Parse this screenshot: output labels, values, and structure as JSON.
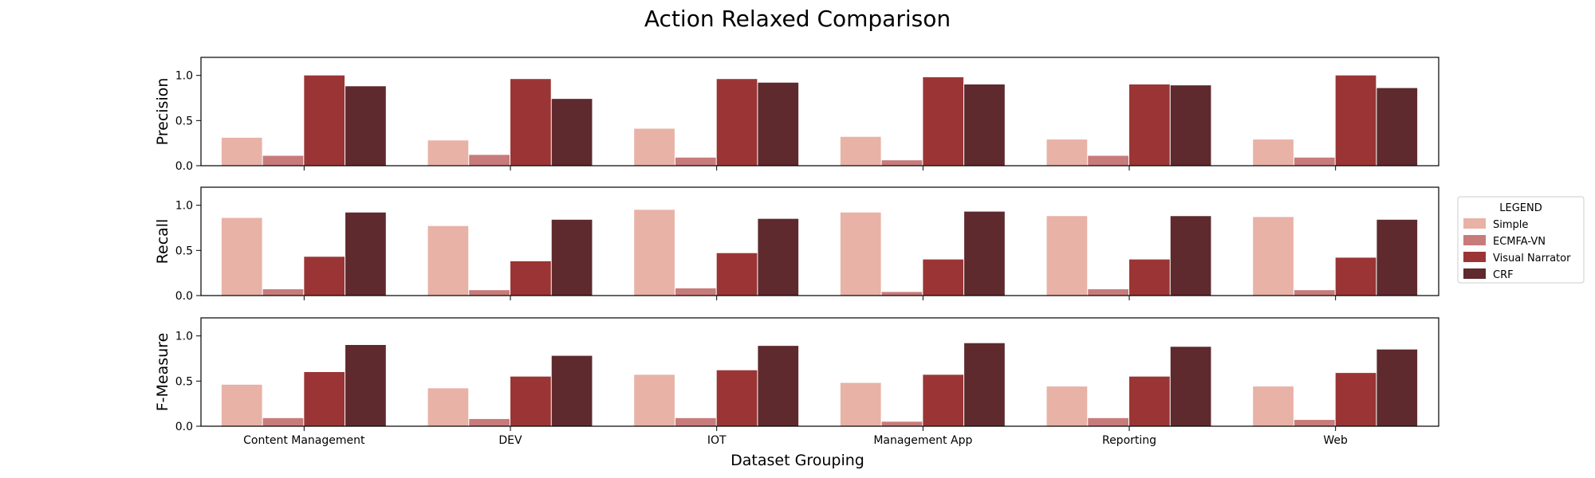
{
  "chart_data": {
    "type": "bar",
    "title": "Action Relaxed Comparison",
    "xlabel": "Dataset Grouping",
    "categories": [
      "Content Management",
      "DEV",
      "IOT",
      "Management App",
      "Reporting",
      "Web"
    ],
    "ylim": [
      0,
      1.2
    ],
    "yticks": [
      "0.0",
      "0.5",
      "1.0"
    ],
    "legend": {
      "title": "LEGEND",
      "placement": "right"
    },
    "series_names": [
      "Simple",
      "ECMFA-VN",
      "Visual Narrator",
      "CRF"
    ],
    "colors": [
      "#e8b2a6",
      "#c87b7b",
      "#9b3535",
      "#5e2a2d"
    ],
    "panels": [
      {
        "ylabel": "Precision",
        "series": [
          {
            "name": "Simple",
            "values": [
              0.31,
              0.28,
              0.41,
              0.32,
              0.29,
              0.29
            ]
          },
          {
            "name": "ECMFA-VN",
            "values": [
              0.11,
              0.12,
              0.09,
              0.06,
              0.11,
              0.09
            ]
          },
          {
            "name": "Visual Narrator",
            "values": [
              1.0,
              0.96,
              0.96,
              0.98,
              0.9,
              1.0
            ]
          },
          {
            "name": "CRF",
            "values": [
              0.88,
              0.74,
              0.92,
              0.9,
              0.89,
              0.86
            ]
          }
        ]
      },
      {
        "ylabel": "Recall",
        "series": [
          {
            "name": "Simple",
            "values": [
              0.86,
              0.77,
              0.95,
              0.92,
              0.88,
              0.87
            ]
          },
          {
            "name": "ECMFA-VN",
            "values": [
              0.07,
              0.06,
              0.08,
              0.04,
              0.07,
              0.06
            ]
          },
          {
            "name": "Visual Narrator",
            "values": [
              0.43,
              0.38,
              0.47,
              0.4,
              0.4,
              0.42
            ]
          },
          {
            "name": "CRF",
            "values": [
              0.92,
              0.84,
              0.85,
              0.93,
              0.88,
              0.84
            ]
          }
        ]
      },
      {
        "ylabel": "F-Measure",
        "series": [
          {
            "name": "Simple",
            "values": [
              0.46,
              0.42,
              0.57,
              0.48,
              0.44,
              0.44
            ]
          },
          {
            "name": "ECMFA-VN",
            "values": [
              0.09,
              0.08,
              0.09,
              0.05,
              0.09,
              0.07
            ]
          },
          {
            "name": "Visual Narrator",
            "values": [
              0.6,
              0.55,
              0.62,
              0.57,
              0.55,
              0.59
            ]
          },
          {
            "name": "CRF",
            "values": [
              0.9,
              0.78,
              0.89,
              0.92,
              0.88,
              0.85
            ]
          }
        ]
      }
    ]
  }
}
